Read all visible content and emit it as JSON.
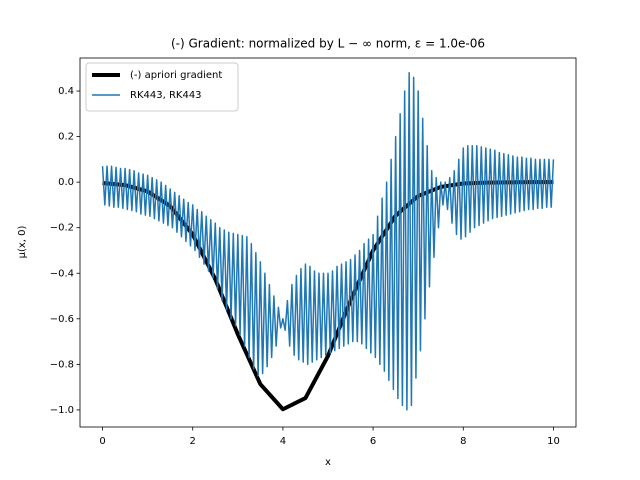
{
  "chart_data": {
    "type": "line",
    "title": "(-) Gradient: normalized by L − ∞ norm, ε = 1.0e-06",
    "x_label": "x",
    "y_label": "μ(x, 0)",
    "xlim": [
      -0.5,
      10.5
    ],
    "ylim": [
      -1.075,
      0.545
    ],
    "xticks": [
      0,
      2,
      4,
      6,
      8,
      10
    ],
    "yticks": [
      0.4,
      0.2,
      {
        "value": 0,
        "label": "0.0"
      },
      {
        "value": -0.2,
        "label": "−0.2"
      },
      {
        "value": -0.4,
        "label": "−0.4"
      },
      {
        "value": -0.6,
        "label": "−0.6"
      },
      {
        "value": -0.8,
        "label": "−0.8"
      },
      {
        "value": -1.0,
        "label": "−1.0"
      }
    ],
    "legend": "upper left",
    "series": [
      {
        "name": "(-) apriori gradient",
        "color": "#000000",
        "width": 4,
        "x": [
          0,
          0.5,
          1,
          1.5,
          2,
          2.5,
          3,
          3.5,
          4,
          4.5,
          5,
          5.5,
          6,
          6.5,
          7,
          7.5,
          8,
          8.5,
          9,
          9.5,
          10
        ],
        "values": [
          -0.004,
          -0.013,
          -0.041,
          -0.105,
          -0.23,
          -0.426,
          -0.668,
          -0.887,
          -0.997,
          -0.948,
          -0.763,
          -0.52,
          -0.3,
          -0.147,
          -0.061,
          -0.021,
          -0.006,
          -0.002,
          -0.001,
          0,
          0
        ]
      },
      {
        "name": "RK443, RK443",
        "color": "#1f77b4",
        "width": 1.5,
        "x": [
          0,
          0.05,
          0.1,
          0.15,
          0.2,
          0.25,
          0.3,
          0.35,
          0.4,
          0.45,
          0.5,
          0.55,
          0.6,
          0.65,
          0.7,
          0.75,
          0.8,
          0.85,
          0.9,
          0.95,
          1,
          1.05,
          1.1,
          1.15,
          1.2,
          1.25,
          1.3,
          1.35,
          1.4,
          1.45,
          1.5,
          1.55,
          1.6,
          1.65,
          1.7,
          1.75,
          1.8,
          1.85,
          1.9,
          1.95,
          2,
          2.05,
          2.1,
          2.15,
          2.2,
          2.25,
          2.3,
          2.35,
          2.4,
          2.45,
          2.5,
          2.55,
          2.6,
          2.65,
          2.7,
          2.75,
          2.8,
          2.85,
          2.9,
          2.95,
          3,
          3.05,
          3.1,
          3.15,
          3.2,
          3.25,
          3.3,
          3.35,
          3.4,
          3.45,
          3.5,
          3.55,
          3.6,
          3.65,
          3.7,
          3.75,
          3.8,
          3.85,
          3.9,
          3.95,
          4,
          4.05,
          4.1,
          4.15,
          4.2,
          4.25,
          4.3,
          4.35,
          4.4,
          4.45,
          4.5,
          4.55,
          4.6,
          4.65,
          4.7,
          4.75,
          4.8,
          4.85,
          4.9,
          4.95,
          5,
          5.05,
          5.1,
          5.15,
          5.2,
          5.25,
          5.3,
          5.35,
          5.4,
          5.45,
          5.5,
          5.55,
          5.6,
          5.65,
          5.7,
          5.75,
          5.8,
          5.85,
          5.9,
          5.95,
          6,
          6.05,
          6.1,
          6.15,
          6.2,
          6.25,
          6.3,
          6.35,
          6.4,
          6.45,
          6.5,
          6.55,
          6.6,
          6.65,
          6.7,
          6.75,
          6.8,
          6.85,
          6.9,
          6.95,
          7,
          7.05,
          7.1,
          7.15,
          7.2,
          7.25,
          7.3,
          7.35,
          7.4,
          7.45,
          7.5,
          7.55,
          7.6,
          7.65,
          7.7,
          7.75,
          7.8,
          7.85,
          7.9,
          7.95,
          8,
          8.05,
          8.1,
          8.15,
          8.2,
          8.25,
          8.3,
          8.35,
          8.4,
          8.45,
          8.5,
          8.55,
          8.6,
          8.65,
          8.7,
          8.75,
          8.8,
          8.85,
          8.9,
          8.95,
          9,
          9.05,
          9.1,
          9.15,
          9.2,
          9.25,
          9.3,
          9.35,
          9.4,
          9.45,
          9.5,
          9.55,
          9.6,
          9.65,
          9.7,
          9.75,
          9.8,
          9.85,
          9.9,
          9.95,
          10
        ],
        "values": [
          0.07,
          -0.1,
          0.07,
          -0.105,
          0.07,
          -0.11,
          0.065,
          -0.11,
          0.06,
          -0.115,
          0.06,
          -0.12,
          0.055,
          -0.125,
          0.05,
          -0.13,
          0.04,
          -0.14,
          0.035,
          -0.145,
          0.03,
          -0.15,
          0.02,
          -0.16,
          0.01,
          -0.17,
          0.0,
          -0.18,
          -0.015,
          -0.19,
          -0.03,
          -0.2,
          -0.045,
          -0.22,
          -0.06,
          -0.24,
          -0.075,
          -0.26,
          -0.09,
          -0.28,
          -0.1,
          -0.3,
          -0.12,
          -0.33,
          -0.13,
          -0.36,
          -0.15,
          -0.39,
          -0.165,
          -0.42,
          -0.18,
          -0.47,
          -0.2,
          -0.52,
          -0.21,
          -0.56,
          -0.22,
          -0.6,
          -0.225,
          -0.63,
          -0.23,
          -0.67,
          -0.235,
          -0.72,
          -0.24,
          -0.77,
          -0.27,
          -0.82,
          -0.31,
          -0.85,
          -0.35,
          -0.84,
          -0.4,
          -0.81,
          -0.45,
          -0.77,
          -0.5,
          -0.72,
          -0.55,
          -0.64,
          -0.6,
          -0.65,
          -0.52,
          -0.72,
          -0.45,
          -0.76,
          -0.41,
          -0.78,
          -0.38,
          -0.79,
          -0.36,
          -0.8,
          -0.37,
          -0.79,
          -0.39,
          -0.78,
          -0.4,
          -0.77,
          -0.4,
          -0.76,
          -0.4,
          -0.75,
          -0.39,
          -0.74,
          -0.37,
          -0.73,
          -0.36,
          -0.72,
          -0.35,
          -0.71,
          -0.34,
          -0.7,
          -0.32,
          -0.7,
          -0.3,
          -0.71,
          -0.27,
          -0.73,
          -0.25,
          -0.75,
          -0.23,
          -0.77,
          -0.15,
          -0.8,
          -0.07,
          -0.83,
          0.0,
          -0.87,
          0.1,
          -0.91,
          0.2,
          -0.95,
          0.3,
          -0.98,
          0.4,
          -1.0,
          0.48,
          -0.98,
          0.46,
          -0.86,
          0.4,
          -0.74,
          0.28,
          -0.6,
          0.16,
          -0.46,
          0.05,
          -0.33,
          0.02,
          -0.2,
          0.0,
          -0.1,
          0.0,
          -0.12,
          0.02,
          -0.18,
          0.05,
          -0.23,
          0.1,
          -0.25,
          0.15,
          -0.24,
          0.16,
          -0.22,
          0.16,
          -0.2,
          0.16,
          -0.19,
          0.155,
          -0.18,
          0.15,
          -0.17,
          0.145,
          -0.16,
          0.14,
          -0.155,
          0.13,
          -0.15,
          0.125,
          -0.145,
          0.12,
          -0.14,
          0.115,
          -0.135,
          0.11,
          -0.13,
          0.11,
          -0.125,
          0.105,
          -0.12,
          0.105,
          -0.12,
          0.1,
          -0.115,
          0.1,
          -0.115,
          0.1,
          -0.11,
          0.1,
          -0.11,
          0.1
        ]
      }
    ]
  }
}
